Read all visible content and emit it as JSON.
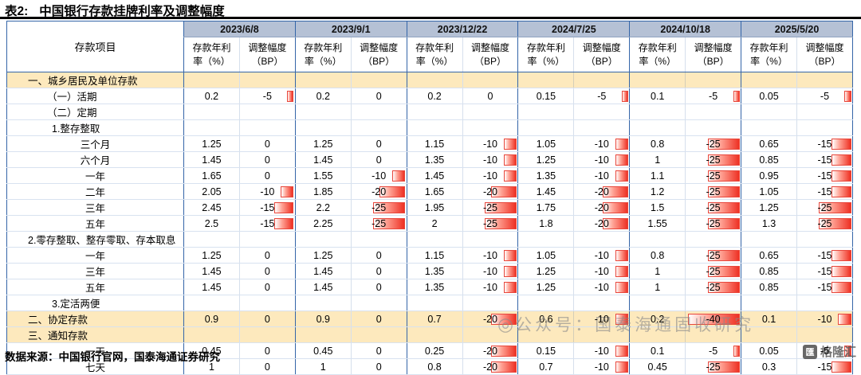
{
  "title_prefix": "表2:",
  "title": "中国银行存款挂牌利率及调整幅度",
  "source": "数据来源：中国银行官网，国泰海通证券研究",
  "watermark_icon": "◎",
  "watermark_text": "公众号：国泰海通固收研究",
  "brand_icon": "匯",
  "brand": "格隆汇",
  "colors": {
    "header_bg": "#b5c1d5",
    "section_bg": "#fde9bd",
    "group_border_blue": "#3465a8",
    "bar_red": "#ee3124",
    "title_rule_black": "#000000"
  },
  "table": {
    "item_header": "存款项目",
    "rate_header": "存款年利\n率（%）",
    "bp_header": "调整幅度\n（BP）",
    "dates": [
      "2023/6/8",
      "2023/9/1",
      "2023/12/22",
      "2024/7/25",
      "2024/10/18",
      "2025/5/20"
    ],
    "bp_axis_max": 40,
    "rows": [
      {
        "label": "一、城乡居民及单位存款",
        "type": "section",
        "ind": 26,
        "cells": []
      },
      {
        "label": "（一）活期",
        "type": "item",
        "ind": 50,
        "cells": [
          [
            "0.2",
            -5
          ],
          [
            "0.2",
            0
          ],
          [
            "0.2",
            0
          ],
          [
            "0.15",
            -5
          ],
          [
            "0.1",
            -5
          ],
          [
            "0.05",
            -5
          ]
        ]
      },
      {
        "label": "（二）定期",
        "type": "group",
        "ind": 50,
        "cells": []
      },
      {
        "label": "1.整存整取",
        "type": "group",
        "ind": 56,
        "cells": []
      },
      {
        "label": "三个月",
        "type": "item",
        "ind": "c",
        "cells": [
          [
            "1.25",
            0
          ],
          [
            "1.25",
            0
          ],
          [
            "1.15",
            -10
          ],
          [
            "1.05",
            -10
          ],
          [
            "0.8",
            -25
          ],
          [
            "0.65",
            -15
          ]
        ]
      },
      {
        "label": "六个月",
        "type": "item",
        "ind": "c",
        "cells": [
          [
            "1.45",
            0
          ],
          [
            "1.45",
            0
          ],
          [
            "1.35",
            -10
          ],
          [
            "1.25",
            -10
          ],
          [
            "1",
            -25
          ],
          [
            "0.85",
            -15
          ]
        ]
      },
      {
        "label": "一年",
        "type": "item",
        "ind": "c",
        "cells": [
          [
            "1.65",
            0
          ],
          [
            "1.55",
            -10
          ],
          [
            "1.45",
            -10
          ],
          [
            "1.35",
            -10
          ],
          [
            "1.1",
            -25
          ],
          [
            "0.95",
            -15
          ]
        ]
      },
      {
        "label": "二年",
        "type": "item",
        "ind": "c",
        "cells": [
          [
            "2.05",
            -10
          ],
          [
            "1.85",
            -20
          ],
          [
            "1.65",
            -20
          ],
          [
            "1.45",
            -20
          ],
          [
            "1.2",
            -25
          ],
          [
            "1.05",
            -15
          ]
        ]
      },
      {
        "label": "三年",
        "type": "item",
        "ind": "c",
        "cells": [
          [
            "2.45",
            -15
          ],
          [
            "2.2",
            -25
          ],
          [
            "1.95",
            -25
          ],
          [
            "1.75",
            -20
          ],
          [
            "1.5",
            -25
          ],
          [
            "1.25",
            -25
          ]
        ]
      },
      {
        "label": "五年",
        "type": "item",
        "ind": "c",
        "cells": [
          [
            "2.5",
            -15
          ],
          [
            "2.25",
            -25
          ],
          [
            "2",
            -25
          ],
          [
            "1.8",
            -20
          ],
          [
            "1.55",
            -25
          ],
          [
            "1.3",
            -25
          ]
        ]
      },
      {
        "label": "2.零存整取、整存零取、存本取息",
        "type": "group",
        "ind": 26,
        "cells": []
      },
      {
        "label": "一年",
        "type": "item",
        "ind": "c",
        "cells": [
          [
            "1.25",
            0
          ],
          [
            "1.25",
            0
          ],
          [
            "1.15",
            -10
          ],
          [
            "1.05",
            -10
          ],
          [
            "0.8",
            -25
          ],
          [
            "0.65",
            -15
          ]
        ]
      },
      {
        "label": "三年",
        "type": "item",
        "ind": "c",
        "cells": [
          [
            "1.45",
            0
          ],
          [
            "1.45",
            0
          ],
          [
            "1.35",
            -10
          ],
          [
            "1.25",
            -10
          ],
          [
            "1",
            -25
          ],
          [
            "0.85",
            -15
          ]
        ]
      },
      {
        "label": "五年",
        "type": "item",
        "ind": "c",
        "cells": [
          [
            "1.45",
            0
          ],
          [
            "1.45",
            0
          ],
          [
            "1.35",
            -10
          ],
          [
            "1.25",
            -10
          ],
          [
            "1",
            -25
          ],
          [
            "0.85",
            -15
          ]
        ]
      },
      {
        "label": "3.定活两便",
        "type": "group",
        "ind": 56,
        "cells": []
      },
      {
        "label": "二、协定存款",
        "type": "section",
        "ind": 26,
        "cells": [
          [
            "0.9",
            0
          ],
          [
            "0.9",
            0
          ],
          [
            "0.7",
            -20
          ],
          [
            "0.6",
            -10
          ],
          [
            "0.2",
            -40
          ],
          [
            "0.1",
            -10
          ]
        ]
      },
      {
        "label": "三、通知存款",
        "type": "section",
        "ind": 26,
        "cells": []
      },
      {
        "label": "一天",
        "type": "item",
        "ind": "c",
        "cells": [
          [
            "0.45",
            0
          ],
          [
            "0.45",
            0
          ],
          [
            "0.25",
            -20
          ],
          [
            "0.15",
            -10
          ],
          [
            "0.1",
            -5
          ],
          [
            "0.05",
            -5
          ]
        ]
      },
      {
        "label": "七天",
        "type": "item",
        "ind": "c",
        "cells": [
          [
            "1",
            0
          ],
          [
            "1",
            0
          ],
          [
            "0.8",
            -20
          ],
          [
            "0.7",
            -10
          ],
          [
            "0.45",
            -25
          ],
          [
            "0.3",
            -15
          ]
        ]
      }
    ]
  }
}
